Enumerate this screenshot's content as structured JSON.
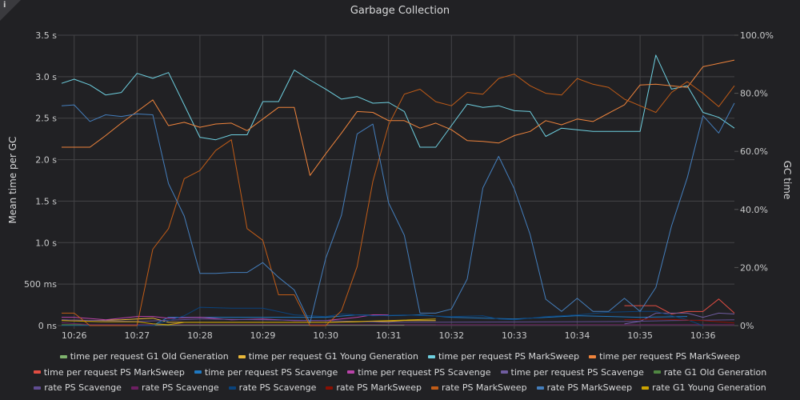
{
  "panel": {
    "title": "Garbage Collection",
    "info_icon": "info-icon"
  },
  "chart_data": {
    "type": "line",
    "title": "Garbage Collection",
    "xlabel": "",
    "ylabel": "Mean time per GC",
    "y2label": "GC time",
    "xlim": [
      "10:25:48",
      "10:36:30"
    ],
    "ylim": [
      0,
      3.5
    ],
    "y2lim": [
      0,
      100
    ],
    "grid": true,
    "legend_position": "bottom",
    "x_ticks": [
      "10:26",
      "10:27",
      "10:28",
      "10:29",
      "10:30",
      "10:31",
      "10:32",
      "10:33",
      "10:34",
      "10:35",
      "10:36"
    ],
    "y_ticks": [
      {
        "v": 0,
        "label": "0 ns"
      },
      {
        "v": 0.5,
        "label": "500 ms"
      },
      {
        "v": 1.0,
        "label": "1.0 s"
      },
      {
        "v": 1.5,
        "label": "1.5 s"
      },
      {
        "v": 2.0,
        "label": "2.0 s"
      },
      {
        "v": 2.5,
        "label": "2.5 s"
      },
      {
        "v": 3.0,
        "label": "3.0 s"
      },
      {
        "v": 3.5,
        "label": "3.5 s"
      }
    ],
    "y2_ticks": [
      {
        "v": 0,
        "label": "0%"
      },
      {
        "v": 20,
        "label": "20.0%"
      },
      {
        "v": 40,
        "label": "40.0%"
      },
      {
        "v": 60,
        "label": "60.0%"
      },
      {
        "v": 80,
        "label": "80.0%"
      },
      {
        "v": 100,
        "label": "100.0%"
      }
    ],
    "x": [
      "10:25:48",
      "10:26:00",
      "10:26:15",
      "10:26:30",
      "10:26:45",
      "10:27:00",
      "10:27:15",
      "10:27:30",
      "10:27:45",
      "10:28:00",
      "10:28:15",
      "10:28:30",
      "10:28:45",
      "10:29:00",
      "10:29:15",
      "10:29:30",
      "10:29:45",
      "10:30:00",
      "10:30:15",
      "10:30:30",
      "10:30:45",
      "10:31:00",
      "10:31:15",
      "10:31:30",
      "10:31:45",
      "10:32:00",
      "10:32:15",
      "10:32:30",
      "10:32:45",
      "10:33:00",
      "10:33:15",
      "10:33:30",
      "10:33:45",
      "10:34:00",
      "10:34:15",
      "10:34:30",
      "10:34:45",
      "10:35:00",
      "10:35:15",
      "10:35:30",
      "10:35:45",
      "10:36:00",
      "10:36:15",
      "10:36:30"
    ],
    "series": [
      {
        "name": "time per request G1 Old Generation",
        "color": "#7eb26d",
        "axis": "left",
        "points": [
          [
            "10:25:48",
            0.005
          ],
          [
            "10:31:15",
            0.005
          ]
        ]
      },
      {
        "name": "time per request G1 Young Generation",
        "color": "#eab839",
        "axis": "left",
        "points": [
          [
            "10:25:48",
            0.07
          ],
          [
            "10:26:15",
            0.06
          ],
          [
            "10:26:45",
            0.07
          ],
          [
            "10:27:15",
            0.09
          ],
          [
            "10:27:30",
            0.04
          ],
          [
            "10:28:00",
            0.04
          ],
          [
            "10:29:00",
            0.04
          ],
          [
            "10:30:00",
            0.04
          ],
          [
            "10:31:00",
            0.05
          ],
          [
            "10:31:15",
            0.06
          ],
          [
            "10:31:45",
            0.06
          ]
        ]
      },
      {
        "name": "time per request PS MarkSweep",
        "color": "#6ed0e0",
        "axis": "left",
        "values": [
          2.92,
          2.97,
          2.9,
          2.78,
          2.81,
          3.04,
          2.98,
          3.05,
          2.66,
          2.27,
          2.24,
          2.3,
          2.3,
          2.7,
          2.7,
          3.08,
          2.96,
          2.85,
          2.73,
          2.76,
          2.68,
          2.69,
          2.58,
          2.15,
          2.15,
          2.41,
          2.67,
          2.63,
          2.65,
          2.59,
          2.58,
          2.28,
          2.38,
          2.36,
          2.34,
          2.34,
          2.34,
          2.34,
          3.26,
          2.85,
          2.89,
          2.57,
          2.51,
          2.38
        ]
      },
      {
        "name": "time per request PS MarkSweep",
        "color": "#ef843c",
        "axis": "left",
        "values": [
          2.15,
          2.15,
          2.15,
          2.29,
          2.44,
          2.58,
          2.72,
          2.41,
          2.45,
          2.39,
          2.43,
          2.44,
          2.35,
          2.49,
          2.63,
          2.63,
          1.81,
          2.07,
          2.32,
          2.58,
          2.57,
          2.47,
          2.47,
          2.38,
          2.44,
          2.36,
          2.23,
          2.22,
          2.2,
          2.29,
          2.34,
          2.47,
          2.42,
          2.49,
          2.46,
          2.56,
          2.66,
          2.9,
          2.91,
          2.89,
          2.87,
          3.12,
          3.16,
          3.2
        ]
      },
      {
        "name": "time per request PS MarkSweep",
        "color": "#e24d42",
        "axis": "left",
        "points": [
          [
            "10:34:45",
            0.24
          ],
          [
            "10:35:00",
            0.24
          ],
          [
            "10:35:15",
            0.24
          ],
          [
            "10:35:30",
            0.14
          ],
          [
            "10:35:45",
            0.17
          ],
          [
            "10:36:00",
            0.17
          ],
          [
            "10:36:15",
            0.32
          ],
          [
            "10:36:30",
            0.15
          ]
        ]
      },
      {
        "name": "time per request PS Scavenge",
        "color": "#1f78c1",
        "axis": "left",
        "points": [
          [
            "10:25:48",
            0.0
          ],
          [
            "10:27:15",
            0.0
          ],
          [
            "10:27:30",
            0.1
          ],
          [
            "10:28:00",
            0.1
          ],
          [
            "10:29:00",
            0.1
          ],
          [
            "10:30:00",
            0.1
          ],
          [
            "10:30:30",
            0.13
          ],
          [
            "10:31:00",
            0.12
          ],
          [
            "10:31:30",
            0.13
          ],
          [
            "10:32:00",
            0.1
          ],
          [
            "10:33:00",
            0.08
          ],
          [
            "10:34:00",
            0.12
          ],
          [
            "10:35:00",
            0.1
          ],
          [
            "10:35:45",
            0.11
          ]
        ]
      },
      {
        "name": "time per request PS Scavenge",
        "color": "#ba43a9",
        "axis": "left",
        "points": [
          [
            "10:25:48",
            0.1
          ],
          [
            "10:26:00",
            0.1
          ],
          [
            "10:26:30",
            0.07
          ],
          [
            "10:27:00",
            0.11
          ],
          [
            "10:27:15",
            0.11
          ],
          [
            "10:27:30",
            0.09
          ],
          [
            "10:28:00",
            0.1
          ],
          [
            "10:28:30",
            0.07
          ],
          [
            "10:29:00",
            0.08
          ],
          [
            "10:29:30",
            0.06
          ],
          [
            "10:30:00",
            0.06
          ],
          [
            "10:30:30",
            0.1
          ],
          [
            "10:30:45",
            0.13
          ],
          [
            "10:31:00",
            0.13
          ]
        ]
      },
      {
        "name": "time per request PS Scavenge",
        "color": "#705da0",
        "axis": "left",
        "points": [
          [
            "10:34:45",
            0.02
          ],
          [
            "10:35:00",
            0.05
          ],
          [
            "10:35:15",
            0.15
          ],
          [
            "10:35:30",
            0.15
          ],
          [
            "10:35:45",
            0.15
          ],
          [
            "10:36:00",
            0.1
          ],
          [
            "10:36:15",
            0.15
          ],
          [
            "10:36:30",
            0.14
          ]
        ]
      },
      {
        "name": "rate G1 Old Generation",
        "color": "#508642",
        "axis": "right",
        "points": [
          [
            "10:25:48",
            0.3
          ],
          [
            "10:31:45",
            0.3
          ]
        ]
      },
      {
        "name": "rate PS Scavenge",
        "color": "#614d93",
        "axis": "right",
        "points": [
          [
            "10:25:48",
            2.0
          ],
          [
            "10:27:00",
            1.4
          ],
          [
            "10:28:00",
            2.3
          ],
          [
            "10:29:00",
            2.0
          ],
          [
            "10:30:00",
            1.7
          ],
          [
            "10:31:00",
            1.1
          ],
          [
            "10:34:45",
            1.4
          ],
          [
            "10:35:30",
            1.7
          ],
          [
            "10:36:30",
            2.0
          ]
        ]
      },
      {
        "name": "rate PS Scavenge",
        "color": "#6d1f62",
        "axis": "right",
        "points": [
          [
            "10:25:48",
            1.0
          ],
          [
            "10:26:15",
            0.3
          ],
          [
            "10:31:00",
            0.3
          ],
          [
            "10:36:30",
            0.3
          ]
        ]
      },
      {
        "name": "rate PS Scavenge",
        "color": "#0a437c",
        "axis": "right",
        "points": [
          [
            "10:25:48",
            0
          ],
          [
            "10:27:15",
            0
          ],
          [
            "10:27:45",
            3.4
          ],
          [
            "10:28:00",
            6.3
          ],
          [
            "10:28:30",
            6.0
          ],
          [
            "10:29:00",
            6.0
          ],
          [
            "10:29:30",
            3.7
          ],
          [
            "10:30:00",
            3.1
          ],
          [
            "10:30:15",
            4.0
          ],
          [
            "10:30:45",
            3.4
          ],
          [
            "10:31:15",
            3.7
          ],
          [
            "10:32:00",
            3.1
          ],
          [
            "10:32:30",
            3.4
          ],
          [
            "10:32:45",
            2.3
          ],
          [
            "10:33:00",
            2.0
          ],
          [
            "10:33:30",
            3.1
          ],
          [
            "10:34:00",
            3.7
          ],
          [
            "10:34:30",
            4.6
          ],
          [
            "10:35:00",
            4.9
          ],
          [
            "10:35:15",
            4.9
          ],
          [
            "10:35:30",
            3.4
          ],
          [
            "10:35:45",
            2.0
          ],
          [
            "10:36:00",
            0
          ]
        ]
      },
      {
        "name": "rate PS MarkSweep",
        "color": "#890f02",
        "axis": "right",
        "points": [
          [
            "10:34:45",
            2.0
          ],
          [
            "10:35:15",
            2.3
          ],
          [
            "10:36:00",
            1.7
          ],
          [
            "10:36:30",
            0.9
          ]
        ]
      },
      {
        "name": "rate PS MarkSweep",
        "color": "#c15c17",
        "axis": "right",
        "values": [
          4.3,
          4.3,
          0,
          0,
          0,
          0,
          26.3,
          33.4,
          50.6,
          53.4,
          60.3,
          64.0,
          33.4,
          29.4,
          10.6,
          10.6,
          0,
          0,
          5.1,
          20.3,
          49.7,
          69.1,
          79.7,
          81.4,
          77.1,
          75.7,
          80.3,
          79.7,
          85.1,
          86.6,
          82.6,
          80.0,
          79.4,
          85.1,
          83.1,
          82.0,
          78.0,
          75.7,
          73.4,
          80.3,
          84.0,
          80.0,
          75.4,
          82.6
        ]
      },
      {
        "name": "rate PS MarkSweep",
        "color": "#447ebc",
        "axis": "right",
        "values": [
          75.7,
          76.0,
          70.3,
          72.6,
          72.0,
          72.9,
          72.6,
          48.9,
          37.7,
          18.0,
          18.0,
          18.3,
          18.3,
          21.7,
          16.6,
          12.3,
          0.9,
          23.1,
          38.0,
          66.0,
          69.4,
          42.3,
          31.1,
          4.3,
          4.3,
          5.7,
          16.0,
          47.4,
          58.3,
          47.1,
          31.4,
          9.1,
          4.9,
          9.4,
          4.9,
          4.9,
          9.4,
          4.9,
          13.1,
          34.3,
          50.9,
          72.3,
          66.3,
          76.6
        ]
      },
      {
        "name": "rate G1 Young Generation",
        "color": "#cca300",
        "axis": "right",
        "points": [
          [
            "10:25:48",
            1.7
          ],
          [
            "10:26:30",
            1.3
          ],
          [
            "10:27:00",
            1.3
          ],
          [
            "10:27:15",
            0.6
          ],
          [
            "10:27:30",
            0.3
          ],
          [
            "10:27:45",
            1.1
          ],
          [
            "10:29:00",
            1.1
          ],
          [
            "10:30:00",
            1.1
          ],
          [
            "10:31:00",
            1.7
          ],
          [
            "10:31:45",
            2.3
          ]
        ]
      }
    ]
  }
}
